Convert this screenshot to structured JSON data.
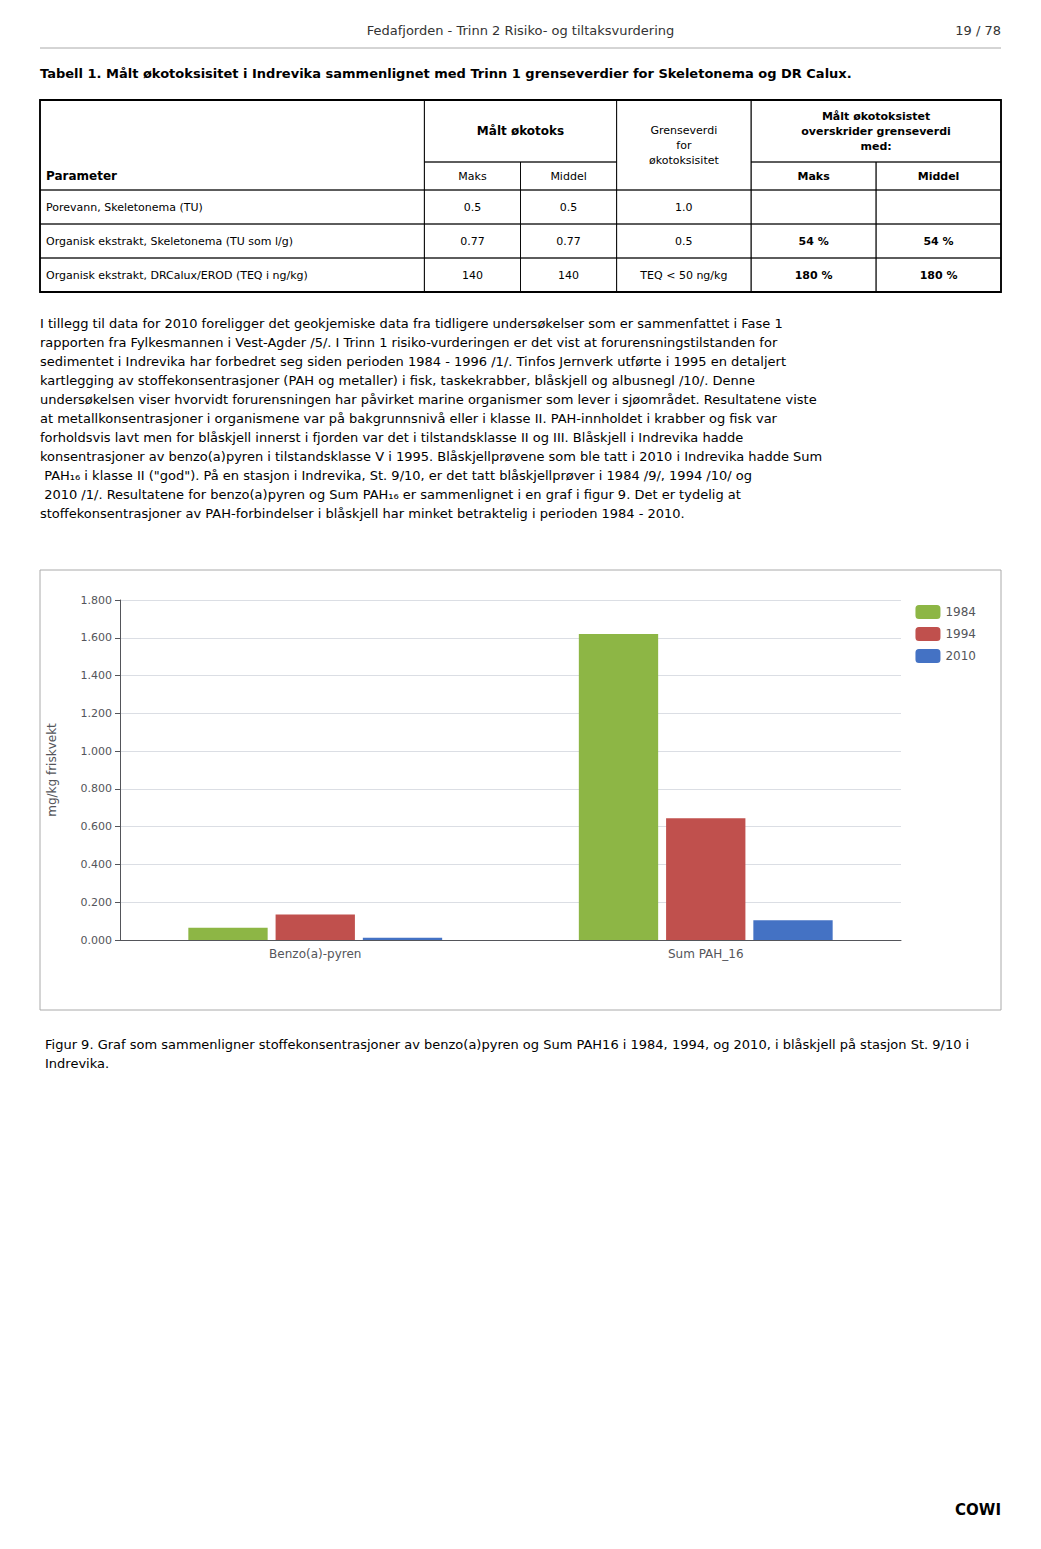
{
  "chart_data": {
    "type": "bar",
    "title": "Figur 9. Graf som sammenligner stoffekonsentrasjoner av benzo(a)pyren og Sum PAH16 i 1984, 1994, og 2010, i blåskjell på stasjon St. 9/10 i Indrevika.",
    "ylabel": "mg/kg friskvekt",
    "categories": [
      "Benzo(a)-pyren",
      "Sum PAH_16"
    ],
    "series": [
      {
        "name": "1984",
        "color": "#8db645",
        "values": [
          0.065,
          1.62
        ]
      },
      {
        "name": "1994",
        "color": "#c0504d",
        "values": [
          0.135,
          0.645
        ]
      },
      {
        "name": "2010",
        "color": "#4472c4",
        "values": [
          0.012,
          0.105
        ]
      }
    ],
    "ylim": [
      0,
      1.8
    ],
    "yticks": [
      {
        "value": 0.0,
        "label": "0.000"
      },
      {
        "value": 0.2,
        "label": "0.200"
      },
      {
        "value": 0.4,
        "label": "0.400"
      },
      {
        "value": 0.6,
        "label": "0.600"
      },
      {
        "value": 0.8,
        "label": "0.800"
      },
      {
        "value": 1.0,
        "label": "1.000"
      },
      {
        "value": 1.2,
        "label": "1.200"
      },
      {
        "value": 1.4,
        "label": "1.400"
      },
      {
        "value": 1.6,
        "label": "1.600"
      },
      {
        "value": 1.8,
        "label": "1.800"
      }
    ],
    "grid": true,
    "legend": "upper right",
    "annotations": [
      "Fedafjorden - Trinn 2 Risiko- og tiltaksvurdering",
      "19 / 78",
      "Tabell 1. Målt økotoksisitet i Indrevika sammenlignet med Trinn 1 grenseverdier for Skeletonema og DR Calux.",
      [
        "Parameter",
        "Målt økotoks",
        "Grenseverdi\nfor\nøkotoksisitet",
        "Målt økotoksistet\noverskrider grenseverdi\nmed:"
      ],
      [
        "Maks",
        "Middel",
        "Maks",
        "Middel"
      ],
      [
        "Porevann, Skeletonema (TU)",
        "0.5",
        "0.5",
        "1.0"
      ],
      [
        "Organisk ekstrakt, Skeletonema (TU som l/g)",
        "0.77",
        "0.77",
        "0.5",
        "54 %",
        "54 %"
      ],
      [
        "Organisk ekstrakt, DRCalux/EROD (TEQ i ng/kg)",
        "140",
        "140",
        "TEQ < 50 ng/kg",
        "180 %",
        "180 %"
      ],
      "I tillegg til data for 2010 foreligger det geokjemiske data fra tidligere undersøkelser som er sammenfattet i Fase 1 rapporten fra Fylkesmannen i Vest-Agder /5/. I Trinn 1 risiko-vurderingen er det vist at forurensningstilstanden for sedimentet i Indrevika har forbedret seg siden perioden 1984 - 1996 /1/. Tinfos Jernverk utførte i 1995 en detaljert kartlegging av stoffekonsentrasjoner (PAH og metaller) i fisk, taskekrabber, blåskjell og albusnegl /10/. Denne undersøkelsen viser hvorvidt forurensningen har påvirket marine organismer som lever i sjøområdet. Resultatene viste at metallkonsentrasjoner i organismene var på bakgrunnsnivå eller i klasse II. PAH-innholdet i krabber og fisk var forholdsvis lavt men for blåskjell innerst i fjorden var det i tilstandsklasse II og III. Blåskjell i Indrevika hadde konsentrasjoner av benzo(a)pyren i tilstandsklasse V i 1995. Blåskjellprøvene som ble tatt i 2010 i Indrevika hadde Sum PAH₁₆ i klasse II (\"god\"). På en stasjon i Indrevika, St. 9/10, er det tatt blåskjellprøver i 1984 /9/, 1994 /10/ og 2010 /1/. Resultatene for benzo(a)pyren og Sum PAH₁₆ er sammenlignet i en graf i figur 9. Det er tydelig at stoffekonsentrasjoner av PAH-forbindelser i blåskjell har minket betraktelig i perioden 1984 - 2010.",
      "COWI"
    ]
  }
}
